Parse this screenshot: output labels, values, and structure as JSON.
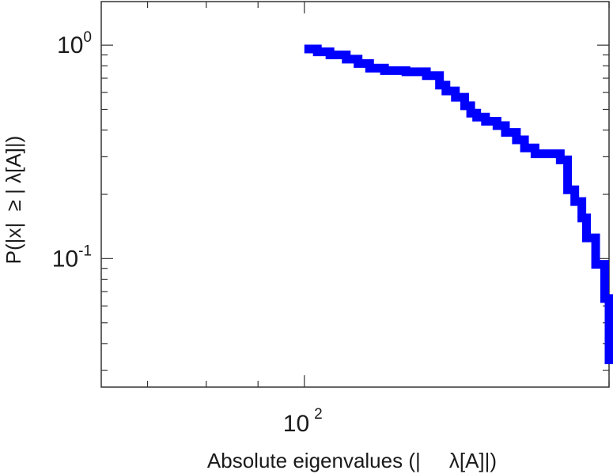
{
  "chart_data": {
    "type": "line",
    "step": true,
    "xscale": "log",
    "yscale": "log",
    "xlim": [
      63,
      200
    ],
    "ylim": [
      0.025,
      1.6
    ],
    "grid": false,
    "color": "#0000ff",
    "xlabel": "Absolute eigenvalues (|     λ[A]|)",
    "ylabel": "P(|x|  ≥ | λ[A]|)",
    "x_ticks": [
      {
        "base": "10",
        "exp": "2"
      }
    ],
    "y_ticks": [
      {
        "value": 1,
        "base": "10",
        "exp": "0"
      },
      {
        "value": 0.1,
        "base": "10",
        "exp": "-1"
      }
    ],
    "series": [
      {
        "x": [
          100,
          103,
          106,
          110,
          113,
          116,
          120,
          126,
          132,
          136,
          138,
          141,
          144,
          146,
          148,
          151,
          155,
          158,
          162,
          165,
          169,
          179,
          182,
          185,
          188,
          190,
          194,
          198,
          200
        ],
        "y": [
          0.96,
          0.93,
          0.9,
          0.86,
          0.82,
          0.78,
          0.76,
          0.75,
          0.72,
          0.65,
          0.61,
          0.57,
          0.52,
          0.48,
          0.46,
          0.44,
          0.42,
          0.39,
          0.36,
          0.33,
          0.31,
          0.29,
          0.21,
          0.185,
          0.155,
          0.125,
          0.094,
          0.065,
          0.032
        ]
      }
    ]
  }
}
